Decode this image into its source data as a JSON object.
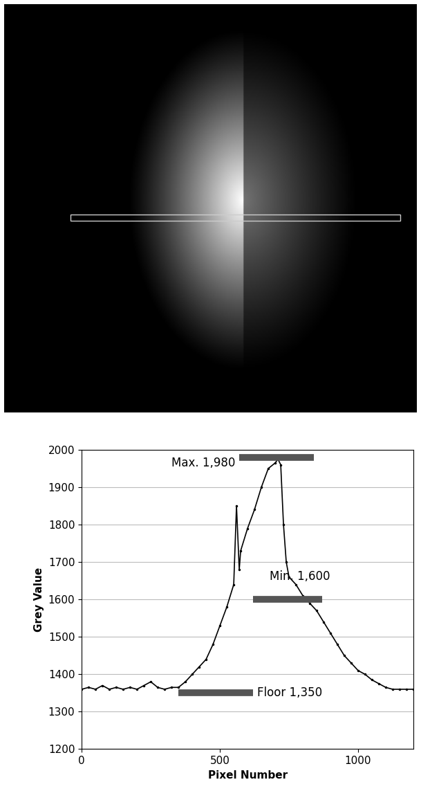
{
  "chart_data": {
    "type": "line",
    "x_label": "Pixel Number",
    "y_label": "Grey Value",
    "xlim": [
      0,
      1200
    ],
    "xticks": [
      0,
      500,
      1000
    ],
    "ylim": [
      1200,
      2000
    ],
    "yticks": [
      1200,
      1300,
      1400,
      1500,
      1600,
      1700,
      1800,
      1900,
      2000
    ],
    "grid": true,
    "series": [
      {
        "color": "#000000",
        "marker": ".",
        "line_style": "solid",
        "x": [
          0,
          25,
          50,
          75,
          100,
          125,
          150,
          175,
          200,
          225,
          250,
          275,
          300,
          325,
          350,
          375,
          400,
          425,
          450,
          475,
          500,
          525,
          550,
          560,
          570,
          575,
          600,
          625,
          650,
          675,
          700,
          710,
          720,
          730,
          740,
          750,
          775,
          800,
          825,
          850,
          875,
          900,
          925,
          950,
          975,
          1000,
          1025,
          1050,
          1075,
          1100,
          1125,
          1150,
          1175,
          1200
        ],
        "values": [
          1360,
          1365,
          1360,
          1370,
          1360,
          1365,
          1360,
          1365,
          1360,
          1370,
          1380,
          1365,
          1360,
          1365,
          1365,
          1380,
          1400,
          1420,
          1440,
          1480,
          1530,
          1580,
          1640,
          1850,
          1680,
          1730,
          1790,
          1840,
          1900,
          1950,
          1965,
          1975,
          1960,
          1800,
          1700,
          1660,
          1640,
          1610,
          1590,
          1570,
          1540,
          1510,
          1480,
          1450,
          1430,
          1410,
          1400,
          1385,
          1375,
          1365,
          1360,
          1360,
          1360,
          1360
        ]
      }
    ],
    "annotations": [
      {
        "text": "Max. 1,980",
        "value": 1980,
        "x": [
          570,
          840
        ]
      },
      {
        "text": "Min. 1,600",
        "value": 1600,
        "x": [
          620,
          870
        ]
      },
      {
        "text": "Floor 1,350",
        "value": 1350,
        "x": [
          350,
          620
        ]
      }
    ]
  }
}
